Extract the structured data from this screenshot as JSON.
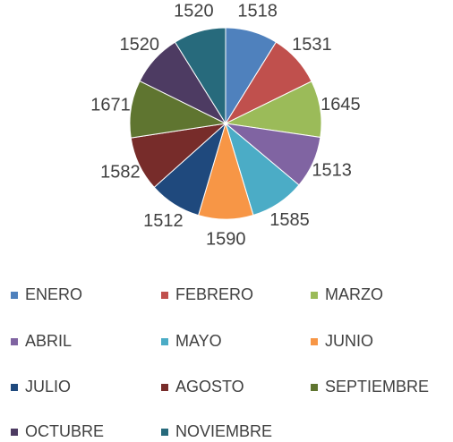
{
  "chart_data": {
    "type": "pie",
    "categories": [
      "ENERO",
      "FEBRERO",
      "MARZO",
      "ABRIL",
      "MAYO",
      "JUNIO",
      "JULIO",
      "AGOSTO",
      "SEPTIEMBRE",
      "OCTUBRE",
      "NOVIEMBRE"
    ],
    "values": [
      1518,
      1531,
      1645,
      1513,
      1585,
      1590,
      1512,
      1582,
      1671,
      1520,
      1520
    ],
    "colors": [
      "#4f81bd",
      "#c0504d",
      "#9bbb59",
      "#8064a2",
      "#4bacc6",
      "#f79646",
      "#1f497d",
      "#772c2a",
      "#5f7530",
      "#4d3b62",
      "#276a7c"
    ],
    "legend": "bottom"
  }
}
